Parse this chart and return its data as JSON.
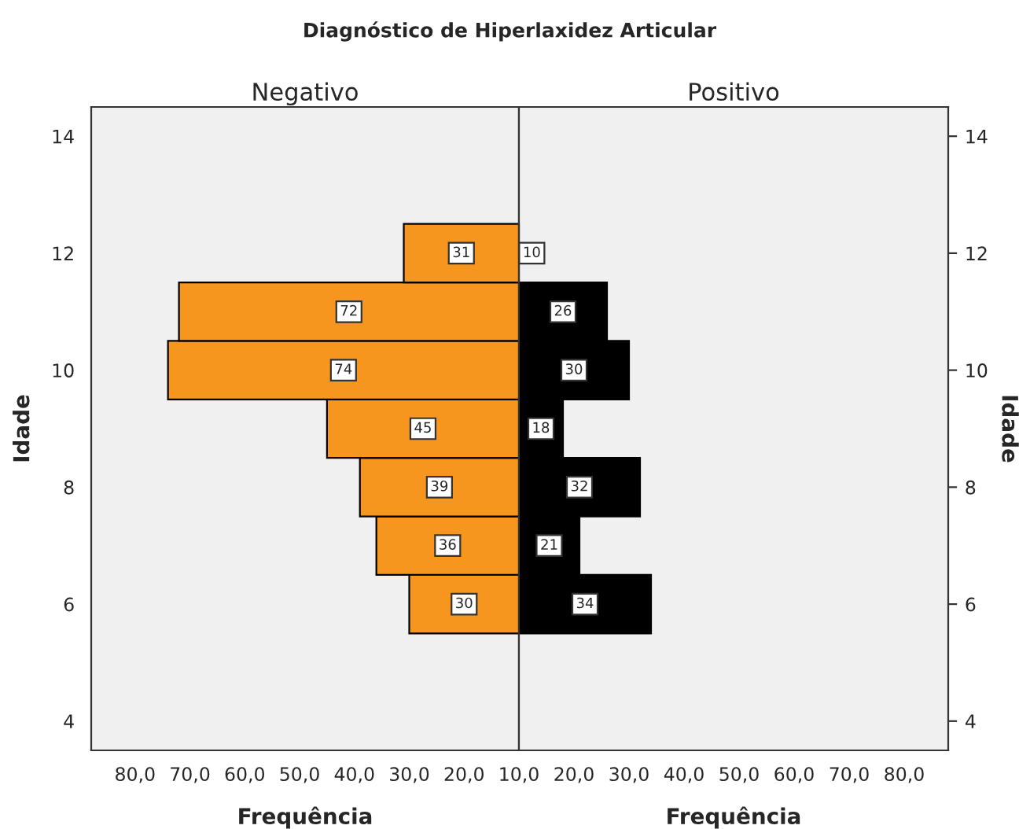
{
  "chart_data": [
    {
      "type": "bar",
      "orientation": "horizontal",
      "title": "Negativo",
      "xlabel": "Frequência",
      "ylabel": "Idade",
      "annotations": [
        "Diagnóstico de Hiperlaxidez Articular"
      ],
      "x": [
        6,
        7,
        8,
        9,
        10,
        11,
        12
      ],
      "series": [
        {
          "color": "#f7961e",
          "values": [
            30,
            36,
            39,
            45,
            74,
            72,
            31
          ]
        }
      ],
      "data_labels": true,
      "xlim": [
        88,
        10
      ],
      "xticks": [
        {
          "value": 80,
          "label": "80,0"
        },
        {
          "value": 70,
          "label": "70,0"
        },
        {
          "value": 60,
          "label": "60,0"
        },
        {
          "value": 50,
          "label": "50,0"
        },
        {
          "value": 40,
          "label": "40,0"
        },
        {
          "value": 30,
          "label": "30,0"
        },
        {
          "value": 20,
          "label": "20,0"
        },
        {
          "value": 10,
          "label": null
        }
      ],
      "ylim": [
        3.5,
        14.5
      ],
      "yticks": [
        4,
        6,
        8,
        10,
        12,
        14
      ],
      "grid": false,
      "legend": false
    },
    {
      "type": "bar",
      "orientation": "horizontal",
      "title": "Positivo",
      "xlabel": "Frequência",
      "ylabel": "Idade",
      "x": [
        6,
        7,
        8,
        9,
        10,
        11,
        12
      ],
      "series": [
        {
          "color": "#000000",
          "values": [
            34,
            21,
            32,
            18,
            30,
            26,
            10
          ]
        }
      ],
      "data_labels": true,
      "xlim": [
        10,
        88
      ],
      "xticks": [
        {
          "value": 10,
          "label": "10,0"
        },
        {
          "value": 20,
          "label": "20,0"
        },
        {
          "value": 30,
          "label": "30,0"
        },
        {
          "value": 40,
          "label": "40,0"
        },
        {
          "value": 50,
          "label": "50,0"
        },
        {
          "value": 60,
          "label": "60,0"
        },
        {
          "value": 70,
          "label": "70,0"
        },
        {
          "value": 80,
          "label": "80,0"
        }
      ],
      "ylim": [
        3.5,
        14.5
      ],
      "yticks": [
        4,
        6,
        8,
        10,
        12,
        14
      ],
      "grid": false,
      "legend": false
    }
  ]
}
